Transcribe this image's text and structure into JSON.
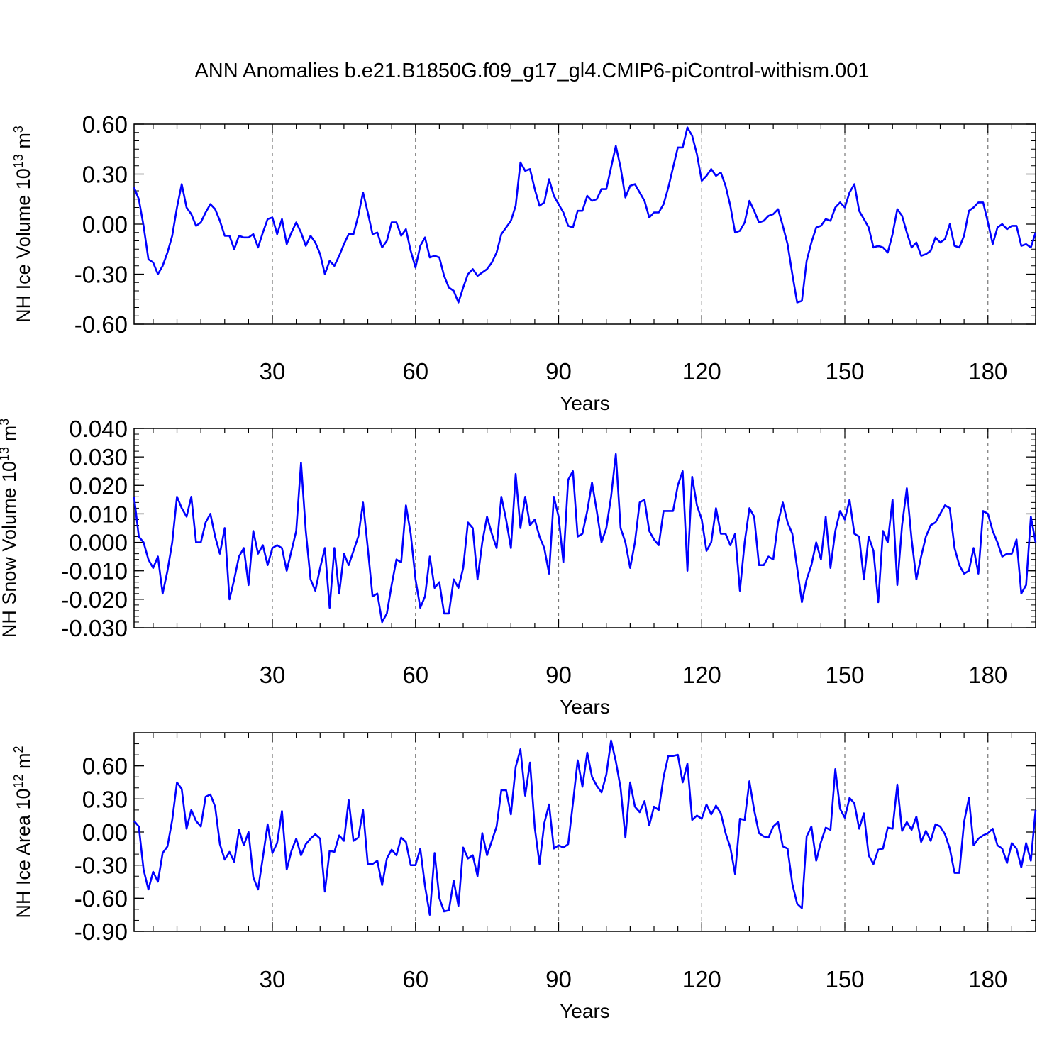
{
  "title": "ANN Anomalies b.e21.B1850G.f09_g17_gl4.CMIP6-piControl-withism.001",
  "chart_data": [
    {
      "type": "line",
      "ylabel_main": "NH Ice Volume 10",
      "ylabel_exp": "13",
      "ylabel_unit": " m",
      "ylabel_unit_exp": "3",
      "xlabel": "Years",
      "xlim": [
        1,
        190
      ],
      "ylim": [
        -0.6,
        0.6
      ],
      "xticks": [
        30,
        60,
        90,
        120,
        150,
        180
      ],
      "xtick_labels": [
        "30",
        "60",
        "90",
        "120",
        "150",
        "180"
      ],
      "yticks": [
        -0.6,
        -0.3,
        0.0,
        0.3,
        0.6
      ],
      "ytick_labels": [
        "-0.60",
        "-0.30",
        "0.00",
        "0.30",
        "0.60"
      ],
      "grid": "vertical-dashed",
      "color": "#0000ff",
      "series": [
        {
          "name": "NH Ice Volume",
          "values": [
            0.22,
            0.15,
            -0.01,
            -0.21,
            -0.23,
            -0.3,
            -0.25,
            -0.17,
            -0.07,
            0.1,
            0.24,
            0.1,
            0.06,
            -0.01,
            0.01,
            0.07,
            0.12,
            0.09,
            0.02,
            -0.07,
            -0.07,
            -0.15,
            -0.07,
            -0.08,
            -0.08,
            -0.06,
            -0.14,
            -0.05,
            0.03,
            0.04,
            -0.06,
            0.03,
            -0.12,
            -0.05,
            0.01,
            -0.05,
            -0.13,
            -0.07,
            -0.11,
            -0.18,
            -0.3,
            -0.22,
            -0.25,
            -0.19,
            -0.12,
            -0.06,
            -0.06,
            0.05,
            0.19,
            0.07,
            -0.06,
            -0.05,
            -0.14,
            -0.1,
            0.01,
            0.01,
            -0.07,
            -0.03,
            -0.16,
            -0.26,
            -0.13,
            -0.08,
            -0.2,
            -0.19,
            -0.2,
            -0.31,
            -0.38,
            -0.4,
            -0.47,
            -0.38,
            -0.3,
            -0.27,
            -0.31,
            -0.29,
            -0.27,
            -0.23,
            -0.17,
            -0.06,
            -0.02,
            0.02,
            0.11,
            0.37,
            0.32,
            0.33,
            0.21,
            0.11,
            0.13,
            0.27,
            0.17,
            0.12,
            0.07,
            -0.01,
            -0.02,
            0.08,
            0.08,
            0.17,
            0.14,
            0.15,
            0.21,
            0.21,
            0.34,
            0.47,
            0.34,
            0.16,
            0.23,
            0.24,
            0.19,
            0.14,
            0.04,
            0.07,
            0.07,
            0.12,
            0.22,
            0.34,
            0.46,
            0.46,
            0.58,
            0.53,
            0.42,
            0.26,
            0.29,
            0.33,
            0.29,
            0.31,
            0.23,
            0.11,
            -0.05,
            -0.04,
            0.01,
            0.14,
            0.08,
            0.01,
            0.02,
            0.05,
            0.06,
            0.09,
            -0.01,
            -0.12,
            -0.3,
            -0.47,
            -0.46,
            -0.22,
            -0.11,
            -0.02,
            -0.01,
            0.03,
            0.02,
            0.1,
            0.13,
            0.1,
            0.19,
            0.24,
            0.08,
            0.03,
            -0.02,
            -0.14,
            -0.13,
            -0.14,
            -0.17,
            -0.06,
            0.09,
            0.05,
            -0.05,
            -0.14,
            -0.11,
            -0.19,
            -0.18,
            -0.16,
            -0.08,
            -0.11,
            -0.09,
            0.0,
            -0.13,
            -0.14,
            -0.07,
            0.08,
            0.1,
            0.13,
            0.13,
            0.01,
            -0.12,
            -0.02,
            0.0,
            -0.03,
            -0.01,
            -0.01,
            -0.13,
            -0.12,
            -0.14,
            -0.05
          ]
        }
      ]
    },
    {
      "type": "line",
      "ylabel_main": "NH Snow Volume 10",
      "ylabel_exp": "13",
      "ylabel_unit": " m",
      "ylabel_unit_exp": "3",
      "xlabel": "Years",
      "xlim": [
        1,
        190
      ],
      "ylim": [
        -0.03,
        0.04
      ],
      "xticks": [
        30,
        60,
        90,
        120,
        150,
        180
      ],
      "xtick_labels": [
        "30",
        "60",
        "90",
        "120",
        "150",
        "180"
      ],
      "yticks": [
        -0.03,
        -0.02,
        -0.01,
        0.0,
        0.01,
        0.02,
        0.03,
        0.04
      ],
      "ytick_labels": [
        "-0.030",
        "-0.020",
        "-0.010",
        "0.000",
        "0.010",
        "0.020",
        "0.030",
        "0.040"
      ],
      "grid": "vertical-dashed",
      "color": "#0000ff",
      "series": [
        {
          "name": "NH Snow Volume",
          "values": [
            0.016,
            0.002,
            0.0,
            -0.006,
            -0.009,
            -0.005,
            -0.018,
            -0.01,
            0.0,
            0.016,
            0.012,
            0.009,
            0.016,
            0.0,
            0.0,
            0.007,
            0.01,
            0.002,
            -0.004,
            0.005,
            -0.02,
            -0.013,
            -0.005,
            -0.002,
            -0.015,
            0.004,
            -0.004,
            -0.001,
            -0.008,
            -0.002,
            -0.001,
            -0.002,
            -0.01,
            -0.003,
            0.004,
            0.028,
            0.004,
            -0.013,
            -0.017,
            -0.009,
            -0.002,
            -0.023,
            -0.002,
            -0.018,
            -0.004,
            -0.008,
            -0.003,
            0.002,
            0.014,
            -0.002,
            -0.019,
            -0.018,
            -0.028,
            -0.025,
            -0.015,
            -0.006,
            -0.007,
            0.013,
            0.003,
            -0.013,
            -0.023,
            -0.019,
            -0.005,
            -0.016,
            -0.014,
            -0.025,
            -0.025,
            -0.013,
            -0.016,
            -0.009,
            0.007,
            0.005,
            -0.013,
            0.0,
            0.009,
            0.003,
            -0.002,
            0.016,
            0.008,
            -0.002,
            0.024,
            0.005,
            0.016,
            0.006,
            0.008,
            0.002,
            -0.002,
            -0.011,
            0.016,
            0.009,
            -0.007,
            0.022,
            0.025,
            0.002,
            0.003,
            0.011,
            0.021,
            0.011,
            0.0,
            0.005,
            0.016,
            0.031,
            0.005,
            0.0,
            -0.009,
            0.0,
            0.014,
            0.015,
            0.004,
            0.001,
            -0.001,
            0.011,
            0.011,
            0.011,
            0.02,
            0.025,
            -0.01,
            0.023,
            0.013,
            0.008,
            -0.003,
            0.0,
            0.012,
            0.003,
            0.003,
            -0.001,
            0.003,
            -0.017,
            0.0,
            0.012,
            0.009,
            -0.008,
            -0.008,
            -0.005,
            -0.006,
            0.007,
            0.014,
            0.007,
            0.003,
            -0.009,
            -0.021,
            -0.013,
            -0.008,
            0.0,
            -0.006,
            0.009,
            -0.009,
            0.004,
            0.011,
            0.008,
            0.015,
            0.003,
            0.002,
            -0.013,
            0.002,
            -0.003,
            -0.021,
            0.004,
            0.0,
            0.015,
            -0.015,
            0.006,
            0.019,
            0.001,
            -0.013,
            -0.005,
            0.002,
            0.006,
            0.007,
            0.01,
            0.013,
            0.012,
            -0.002,
            -0.008,
            -0.011,
            -0.01,
            -0.002,
            -0.011,
            0.011,
            0.01,
            0.004,
            0.0,
            -0.005,
            -0.004,
            -0.004,
            0.001,
            -0.018,
            -0.015,
            0.009,
            0.0
          ]
        }
      ]
    },
    {
      "type": "line",
      "ylabel_main": "NH Ice Area 10",
      "ylabel_exp": "12",
      "ylabel_unit": " m",
      "ylabel_unit_exp": "2",
      "xlabel": "Years",
      "xlim": [
        1,
        190
      ],
      "ylim": [
        -0.9,
        0.9
      ],
      "xticks": [
        30,
        60,
        90,
        120,
        150,
        180
      ],
      "xtick_labels": [
        "30",
        "60",
        "90",
        "120",
        "150",
        "180"
      ],
      "yticks": [
        -0.9,
        -0.6,
        -0.3,
        0.0,
        0.3,
        0.6
      ],
      "ytick_labels": [
        "-0.90",
        "-0.60",
        "-0.30",
        "0.00",
        "0.30",
        "0.60"
      ],
      "grid": "vertical-dashed",
      "color": "#0000ff",
      "series": [
        {
          "name": "NH Ice Area",
          "values": [
            0.1,
            0.05,
            -0.34,
            -0.52,
            -0.36,
            -0.45,
            -0.19,
            -0.13,
            0.11,
            0.45,
            0.39,
            0.03,
            0.2,
            0.1,
            0.05,
            0.32,
            0.34,
            0.23,
            -0.11,
            -0.25,
            -0.18,
            -0.27,
            0.02,
            -0.12,
            0.0,
            -0.41,
            -0.52,
            -0.23,
            0.07,
            -0.19,
            -0.1,
            0.19,
            -0.34,
            -0.17,
            -0.06,
            -0.21,
            -0.11,
            -0.06,
            -0.02,
            -0.06,
            -0.54,
            -0.17,
            -0.18,
            -0.03,
            -0.08,
            0.29,
            -0.08,
            -0.05,
            0.2,
            -0.29,
            -0.29,
            -0.26,
            -0.48,
            -0.24,
            -0.16,
            -0.21,
            -0.05,
            -0.09,
            -0.3,
            -0.3,
            -0.15,
            -0.49,
            -0.75,
            -0.19,
            -0.6,
            -0.72,
            -0.71,
            -0.44,
            -0.67,
            -0.14,
            -0.24,
            -0.21,
            -0.4,
            -0.01,
            -0.21,
            -0.08,
            0.05,
            0.38,
            0.38,
            0.16,
            0.59,
            0.75,
            0.33,
            0.63,
            0.04,
            -0.29,
            0.08,
            0.25,
            -0.15,
            -0.12,
            -0.14,
            -0.11,
            0.26,
            0.65,
            0.41,
            0.72,
            0.5,
            0.42,
            0.36,
            0.52,
            0.83,
            0.64,
            0.4,
            -0.05,
            0.45,
            0.23,
            0.18,
            0.28,
            0.06,
            0.23,
            0.2,
            0.5,
            0.69,
            0.69,
            0.7,
            0.45,
            0.62,
            0.11,
            0.15,
            0.12,
            0.25,
            0.16,
            0.24,
            0.17,
            -0.01,
            -0.14,
            -0.38,
            0.12,
            0.11,
            0.46,
            0.2,
            -0.01,
            -0.04,
            -0.05,
            0.05,
            0.09,
            -0.13,
            -0.15,
            -0.47,
            -0.65,
            -0.69,
            -0.04,
            0.05,
            -0.26,
            -0.09,
            0.04,
            0.02,
            0.57,
            0.21,
            0.13,
            0.31,
            0.26,
            0.03,
            0.17,
            -0.21,
            -0.29,
            -0.16,
            -0.15,
            0.04,
            0.03,
            0.43,
            0.01,
            0.09,
            0.02,
            0.14,
            -0.09,
            0.01,
            -0.08,
            0.07,
            0.05,
            -0.02,
            -0.15,
            -0.37,
            -0.37,
            0.09,
            0.31,
            -0.12,
            -0.06,
            -0.03,
            -0.01,
            0.03,
            -0.12,
            -0.15,
            -0.28,
            -0.1,
            -0.15,
            -0.32,
            -0.1,
            -0.26,
            0.2
          ]
        }
      ]
    }
  ]
}
